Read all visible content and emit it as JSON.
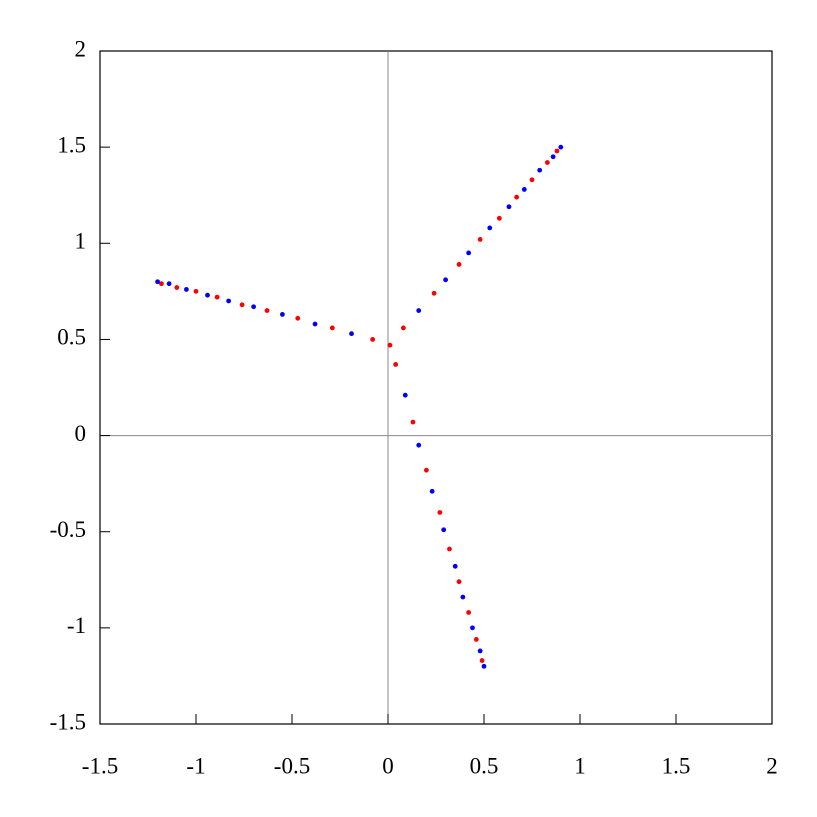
{
  "chart_data": {
    "type": "scatter",
    "xlim": [
      -1.5,
      2
    ],
    "ylim": [
      -1.5,
      2
    ],
    "xticks": [
      -1.5,
      -1,
      -0.5,
      0,
      0.5,
      1,
      1.5,
      2
    ],
    "yticks": [
      -1.5,
      -1,
      -0.5,
      0,
      0.5,
      1,
      1.5,
      2
    ],
    "zero_lines": true,
    "series": [
      {
        "color": "#ff0000",
        "x": [
          -0.08,
          -0.29,
          -0.47,
          -0.63,
          -0.76,
          -0.89,
          -1.0,
          -1.1,
          -1.18,
          0.08,
          0.24,
          0.37,
          0.48,
          0.58,
          0.67,
          0.75,
          0.83,
          0.88,
          0.04,
          0.13,
          0.2,
          0.27,
          0.32,
          0.37,
          0.42,
          0.46,
          0.49,
          0.01
        ],
        "values": [
          0.5,
          0.56,
          0.61,
          0.65,
          0.68,
          0.72,
          0.75,
          0.77,
          0.79,
          0.56,
          0.74,
          0.89,
          1.02,
          1.13,
          1.24,
          1.33,
          1.42,
          1.48,
          0.37,
          0.07,
          -0.18,
          -0.4,
          -0.59,
          -0.76,
          -0.92,
          -1.06,
          -1.17,
          0.47
        ]
      },
      {
        "color": "#0000ff",
        "x": [
          -0.19,
          -0.38,
          -0.55,
          -0.7,
          -0.83,
          -0.94,
          -1.05,
          -1.14,
          -1.2,
          0.16,
          0.3,
          0.42,
          0.53,
          0.63,
          0.71,
          0.79,
          0.86,
          0.9,
          0.09,
          0.16,
          0.23,
          0.29,
          0.35,
          0.39,
          0.44,
          0.48,
          0.5
        ],
        "values": [
          0.53,
          0.58,
          0.63,
          0.67,
          0.7,
          0.73,
          0.76,
          0.79,
          0.8,
          0.65,
          0.81,
          0.95,
          1.08,
          1.19,
          1.28,
          1.38,
          1.45,
          1.5,
          0.21,
          -0.05,
          -0.29,
          -0.49,
          -0.68,
          -0.84,
          -1.0,
          -1.12,
          -1.2
        ]
      }
    ]
  }
}
